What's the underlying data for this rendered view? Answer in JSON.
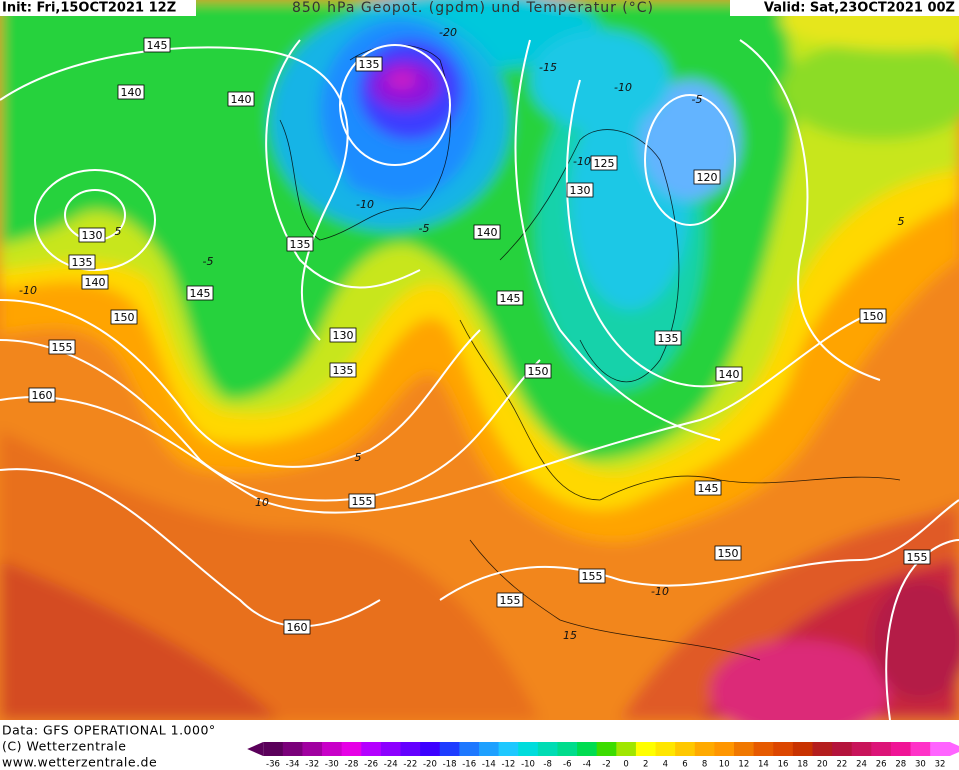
{
  "header": {
    "init": "Init: Fri,15OCT2021 12Z",
    "title": "850 hPa Geopot. (gpdm) und Temperatur (°C)",
    "valid": "Valid: Sat,23OCT2021 00Z"
  },
  "footer": {
    "data": "Data: GFS OPERATIONAL 1.000°",
    "copyright": "(C) Wetterzentrale",
    "url": "www.wetterzentrale.de"
  },
  "geopotential_labels": [
    145,
    140,
    140,
    135,
    130,
    135,
    140,
    145,
    150,
    155,
    160,
    135,
    130,
    135,
    140,
    145,
    150,
    125,
    130,
    120,
    135,
    140,
    150,
    145,
    150,
    155,
    155,
    155,
    160,
    155
  ],
  "temperature_labels": [
    -20,
    -15,
    -10,
    -5,
    -10,
    -5,
    -5,
    -10,
    5,
    5,
    10,
    -10,
    5,
    -10,
    15
  ],
  "scale": {
    "values": [
      -36,
      -34,
      -32,
      -30,
      -28,
      -26,
      -24,
      -22,
      -20,
      -18,
      -16,
      -14,
      -12,
      -10,
      -8,
      -6,
      -4,
      -2,
      0,
      2,
      4,
      6,
      8,
      10,
      12,
      14,
      16,
      18,
      20,
      22,
      24,
      26,
      28,
      30,
      32
    ],
    "colors": [
      "#5a005a",
      "#7a007a",
      "#a000a0",
      "#c800c8",
      "#e600e6",
      "#b400ff",
      "#8c00ff",
      "#6400ff",
      "#3c00ff",
      "#1e3cff",
      "#1e78ff",
      "#1ea0ff",
      "#1ec8ff",
      "#00dcdc",
      "#00dcb4",
      "#00dc8c",
      "#00dc50",
      "#3cdc00",
      "#a0e600",
      "#ffff00",
      "#ffe600",
      "#ffc800",
      "#ffaa00",
      "#ff9600",
      "#f07800",
      "#e65a00",
      "#dc4600",
      "#c83200",
      "#b41e1e",
      "#b4143c",
      "#c8145a",
      "#dc1478",
      "#f01496",
      "#ff32c8",
      "#ff64ff"
    ]
  }
}
